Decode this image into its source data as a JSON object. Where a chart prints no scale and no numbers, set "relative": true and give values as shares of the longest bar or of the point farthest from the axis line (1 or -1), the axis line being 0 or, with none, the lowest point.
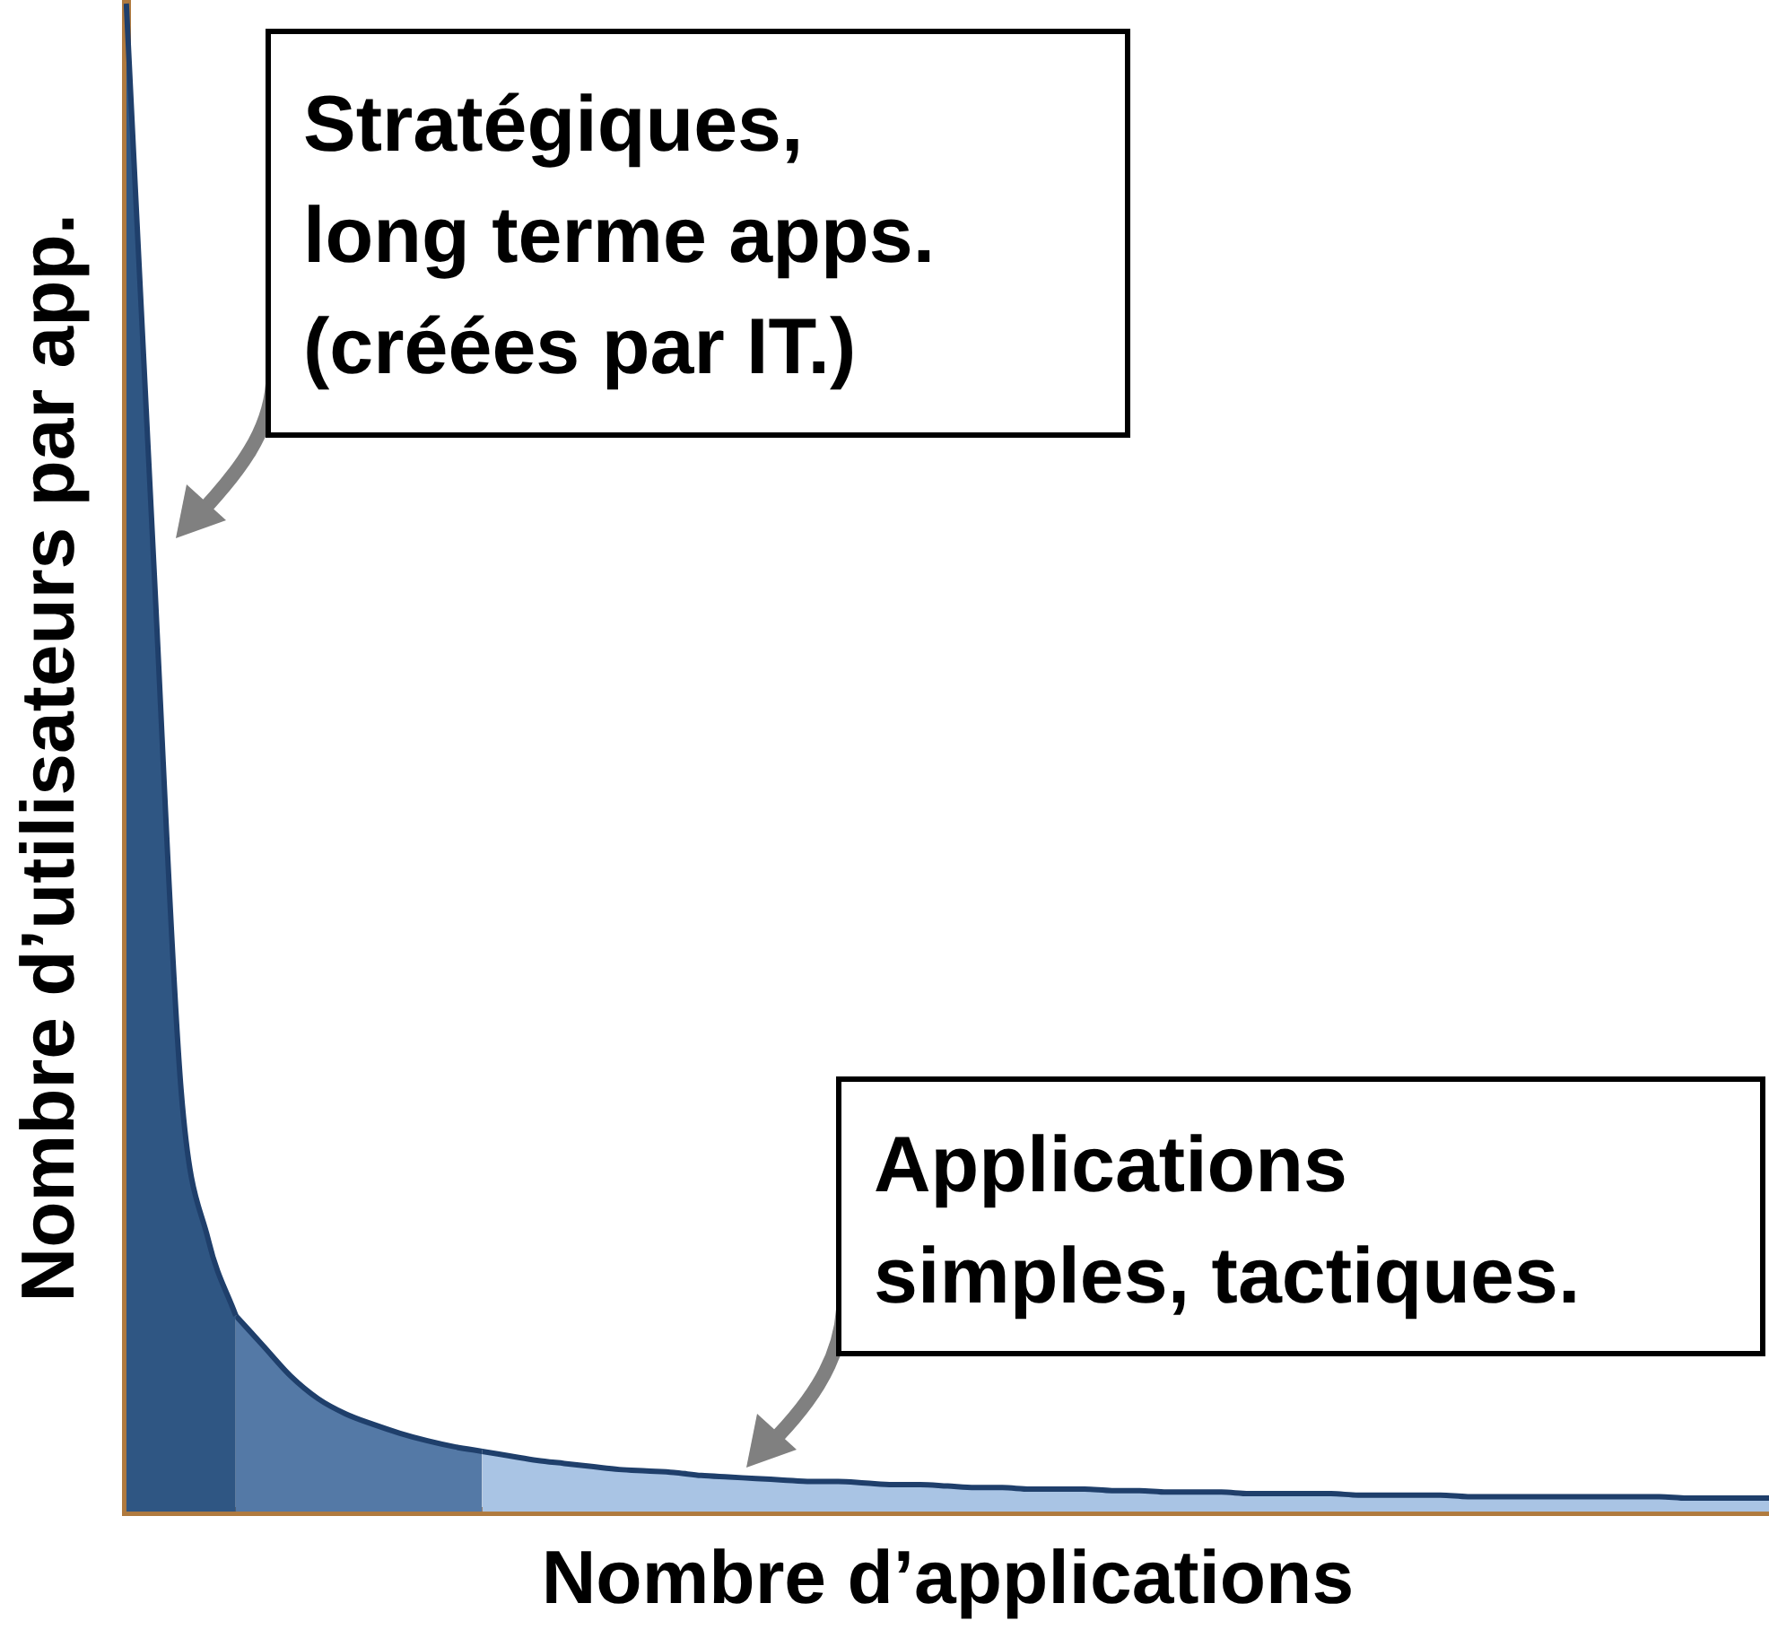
{
  "chart_data": {
    "type": "area",
    "relative": true,
    "xlabel": "Nombre d’applications",
    "ylabel": "Nombre d’utilisateurs par app.",
    "tick_labels": false,
    "grid": false,
    "legend": false,
    "categories": [
      null,
      null,
      null,
      null,
      null,
      null,
      null,
      null,
      null,
      null,
      null,
      null,
      null,
      null,
      null,
      null,
      null,
      null,
      null,
      null,
      null,
      null,
      null,
      null,
      null,
      null,
      null,
      null,
      null,
      null,
      null,
      null,
      null,
      null,
      null,
      null,
      null,
      null,
      null,
      null,
      null,
      null,
      null,
      null,
      null,
      null,
      null,
      null,
      null,
      null,
      null,
      null,
      null,
      null,
      null,
      null,
      null,
      null,
      null,
      null,
      null
    ],
    "series": [
      {
        "color": "#2f5683",
        "values": [
          1.0,
          0.63,
          0.28,
          0.18,
          0.13,
          null,
          null,
          null,
          null,
          null,
          null,
          null,
          null,
          null,
          null,
          null,
          null,
          null,
          null,
          null,
          null,
          null,
          null,
          null,
          null,
          null,
          null,
          null,
          null,
          null,
          null,
          null,
          null,
          null,
          null,
          null,
          null,
          null,
          null,
          null,
          null,
          null,
          null,
          null,
          null,
          null,
          null,
          null,
          null,
          null,
          null,
          null,
          null,
          null,
          null,
          null,
          null,
          null,
          null,
          null,
          null
        ]
      },
      {
        "color": "#5479a6",
        "values": [
          null,
          null,
          null,
          null,
          0.13,
          0.11,
          0.09,
          0.075,
          0.065,
          0.058,
          0.052,
          0.047,
          0.043,
          0.04,
          null,
          null,
          null,
          null,
          null,
          null,
          null,
          null,
          null,
          null,
          null,
          null,
          null,
          null,
          null,
          null,
          null,
          null,
          null,
          null,
          null,
          null,
          null,
          null,
          null,
          null,
          null,
          null,
          null,
          null,
          null,
          null,
          null,
          null,
          null,
          null,
          null,
          null,
          null,
          null,
          null,
          null,
          null,
          null,
          null,
          null,
          null
        ]
      },
      {
        "color": "#a9c4e4",
        "values": [
          null,
          null,
          null,
          null,
          null,
          null,
          null,
          null,
          null,
          null,
          null,
          null,
          null,
          0.04,
          0.037,
          0.034,
          0.032,
          0.03,
          0.028,
          0.027,
          0.026,
          0.024,
          0.023,
          0.022,
          0.021,
          0.02,
          0.02,
          0.019,
          0.018,
          0.018,
          0.017,
          0.016,
          0.016,
          0.015,
          0.015,
          0.015,
          0.014,
          0.014,
          0.013,
          0.013,
          0.013,
          0.012,
          0.012,
          0.012,
          0.012,
          0.011,
          0.011,
          0.011,
          0.011,
          0.01,
          0.01,
          0.01,
          0.01,
          0.01,
          0.01,
          0.01,
          0.01,
          0.009,
          0.009,
          0.009,
          0.009
        ]
      }
    ],
    "annotations": [
      "Stratégiques,\nlong terme apps.\n(créées par IT.)",
      "Applications\nsimples, tactiques."
    ]
  }
}
